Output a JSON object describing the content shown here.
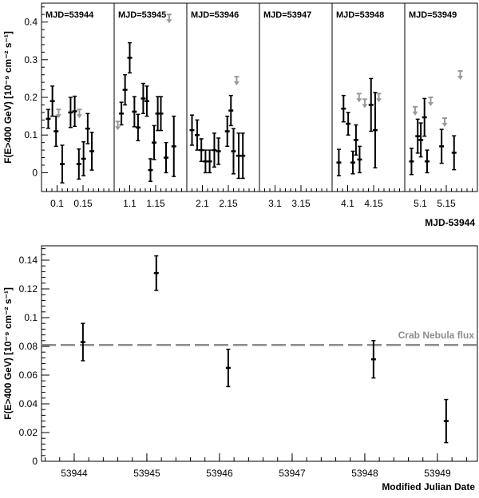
{
  "chart_data": [
    {
      "type": "scatter",
      "title": "",
      "ylabel": "F(E>400 GeV) [10⁻⁹ cm⁻² s⁻¹]",
      "xlabel": "MJD-53944",
      "ylim": [
        -0.05,
        0.45
      ],
      "yticks": [
        "0",
        "0.1",
        "0.2",
        "0.3",
        "0.4"
      ],
      "panels": [
        {
          "label": "MJD=53944",
          "xlim": [
            0.07,
            0.21
          ],
          "xticks": [
            [
              "0.1",
              0.1
            ],
            [
              "0.15",
              0.15
            ]
          ],
          "points": [
            {
              "x": 0.083,
              "y": 0.143,
              "err": 0.025
            },
            {
              "x": 0.091,
              "y": 0.19,
              "err": 0.04
            },
            {
              "x": 0.098,
              "y": 0.11,
              "err": 0.04
            },
            {
              "x": 0.11,
              "y": 0.023,
              "err": 0.05
            },
            {
              "x": 0.126,
              "y": 0.16,
              "err": 0.04
            },
            {
              "x": 0.134,
              "y": 0.163,
              "err": 0.04
            },
            {
              "x": 0.142,
              "y": 0.023,
              "err": 0.04
            },
            {
              "x": 0.151,
              "y": 0.037,
              "err": 0.045
            },
            {
              "x": 0.159,
              "y": 0.117,
              "err": 0.04
            },
            {
              "x": 0.167,
              "y": 0.057,
              "err": 0.05
            }
          ],
          "upper_limits": [
            {
              "x": 0.103,
              "y": 0.168
            },
            {
              "x": 0.143,
              "y": 0.168
            }
          ]
        },
        {
          "label": "MJD=53945",
          "xlim": [
            1.07,
            1.21
          ],
          "xticks": [
            [
              "1.1",
              1.1
            ],
            [
              "1.15",
              1.15
            ]
          ],
          "points": [
            {
              "x": 1.084,
              "y": 0.157,
              "err": 0.03
            },
            {
              "x": 1.091,
              "y": 0.22,
              "err": 0.04
            },
            {
              "x": 1.1,
              "y": 0.305,
              "err": 0.04
            },
            {
              "x": 1.109,
              "y": 0.162,
              "err": 0.04
            },
            {
              "x": 1.116,
              "y": 0.12,
              "err": 0.035
            },
            {
              "x": 1.126,
              "y": 0.197,
              "err": 0.04
            },
            {
              "x": 1.133,
              "y": 0.19,
              "err": 0.04
            },
            {
              "x": 1.14,
              "y": 0.007,
              "err": 0.03
            },
            {
              "x": 1.147,
              "y": 0.08,
              "err": 0.045
            },
            {
              "x": 1.154,
              "y": 0.157,
              "err": 0.045
            },
            {
              "x": 1.16,
              "y": 0.157,
              "err": 0.045
            },
            {
              "x": 1.17,
              "y": 0.04,
              "err": 0.04
            },
            {
              "x": 1.185,
              "y": 0.07,
              "err": 0.08
            }
          ],
          "upper_limits": [
            {
              "x": 1.077,
              "y": 0.136
            },
            {
              "x": 1.176,
              "y": 0.42
            }
          ]
        },
        {
          "label": "MJD=53946",
          "xlim": [
            2.07,
            2.21
          ],
          "xticks": [
            [
              "2.1",
              2.1
            ],
            [
              "2.15",
              2.15
            ]
          ],
          "points": [
            {
              "x": 2.08,
              "y": 0.113,
              "err": 0.04
            },
            {
              "x": 2.09,
              "y": 0.1,
              "err": 0.04
            },
            {
              "x": 2.098,
              "y": 0.06,
              "err": 0.03
            },
            {
              "x": 2.106,
              "y": 0.03,
              "err": 0.03
            },
            {
              "x": 2.114,
              "y": 0.03,
              "err": 0.03
            },
            {
              "x": 2.123,
              "y": 0.06,
              "err": 0.045
            },
            {
              "x": 2.131,
              "y": 0.057,
              "err": 0.035
            },
            {
              "x": 2.148,
              "y": 0.11,
              "err": 0.04
            },
            {
              "x": 2.155,
              "y": 0.165,
              "err": 0.04
            },
            {
              "x": 2.16,
              "y": 0.057,
              "err": 0.06
            },
            {
              "x": 2.17,
              "y": 0.045,
              "err": 0.06
            },
            {
              "x": 2.178,
              "y": 0.045,
              "err": 0.06
            }
          ],
          "upper_limits": [
            {
              "x": 2.166,
              "y": 0.255
            }
          ]
        },
        {
          "label": "MJD=53947",
          "xlim": [
            3.07,
            3.21
          ],
          "xticks": [
            [
              "3.1",
              3.1
            ],
            [
              "3.15",
              3.15
            ]
          ],
          "points": [],
          "upper_limits": []
        },
        {
          "label": "MJD=53948",
          "xlim": [
            4.07,
            4.21
          ],
          "xticks": [
            [
              "4.1",
              4.1
            ],
            [
              "4.15",
              4.15
            ]
          ],
          "points": [
            {
              "x": 4.083,
              "y": 0.027,
              "err": 0.035
            },
            {
              "x": 4.092,
              "y": 0.17,
              "err": 0.035
            },
            {
              "x": 4.101,
              "y": 0.13,
              "err": 0.03
            },
            {
              "x": 4.11,
              "y": 0.027,
              "err": 0.03
            },
            {
              "x": 4.116,
              "y": 0.087,
              "err": 0.04
            },
            {
              "x": 4.123,
              "y": 0.035,
              "err": 0.035
            },
            {
              "x": 4.145,
              "y": 0.18,
              "err": 0.07
            },
            {
              "x": 4.153,
              "y": 0.113,
              "err": 0.1
            }
          ],
          "upper_limits": [
            {
              "x": 4.122,
              "y": 0.21
            },
            {
              "x": 4.133,
              "y": 0.195
            },
            {
              "x": 4.16,
              "y": 0.21
            }
          ]
        },
        {
          "label": "MJD=53949",
          "xlim": [
            5.07,
            5.21
          ],
          "xticks": [
            [
              "5.1",
              5.1
            ],
            [
              "5.15",
              5.15
            ]
          ],
          "points": [
            {
              "x": 5.083,
              "y": 0.03,
              "err": 0.035
            },
            {
              "x": 5.095,
              "y": 0.097,
              "err": 0.045
            },
            {
              "x": 5.101,
              "y": 0.087,
              "err": 0.045
            },
            {
              "x": 5.108,
              "y": 0.147,
              "err": 0.05
            },
            {
              "x": 5.113,
              "y": 0.03,
              "err": 0.03
            },
            {
              "x": 5.141,
              "y": 0.07,
              "err": 0.045
            },
            {
              "x": 5.165,
              "y": 0.053,
              "err": 0.045
            }
          ],
          "upper_limits": [
            {
              "x": 5.09,
              "y": 0.175
            },
            {
              "x": 5.12,
              "y": 0.2
            },
            {
              "x": 5.147,
              "y": 0.145
            },
            {
              "x": 5.177,
              "y": 0.27
            }
          ]
        }
      ]
    },
    {
      "type": "scatter",
      "title": "",
      "ylabel": "F(E>400 GeV) [10⁻⁹ cm⁻² s⁻¹]",
      "xlabel": "Modified Julian Date",
      "xlim": [
        53943.55,
        53949.55
      ],
      "ylim": [
        0,
        0.15
      ],
      "xticks": [
        53944,
        53945,
        53946,
        53947,
        53948,
        53949
      ],
      "yticks": [
        0,
        0.02,
        0.04,
        0.06,
        0.08,
        0.1,
        0.12,
        0.14
      ],
      "series": [
        {
          "points": [
            {
              "x": 53944.12,
              "y": 0.083,
              "err": 0.013
            },
            {
              "x": 53945.13,
              "y": 0.131,
              "err": 0.012
            },
            {
              "x": 53946.12,
              "y": 0.065,
              "err": 0.013
            },
            {
              "x": 53948.12,
              "y": 0.071,
              "err": 0.013
            },
            {
              "x": 53949.12,
              "y": 0.028,
              "err": 0.015
            }
          ]
        }
      ],
      "reference_line": {
        "label": "Crab Nebula flux",
        "y": 0.081,
        "color": "#8c8c8c"
      }
    }
  ]
}
